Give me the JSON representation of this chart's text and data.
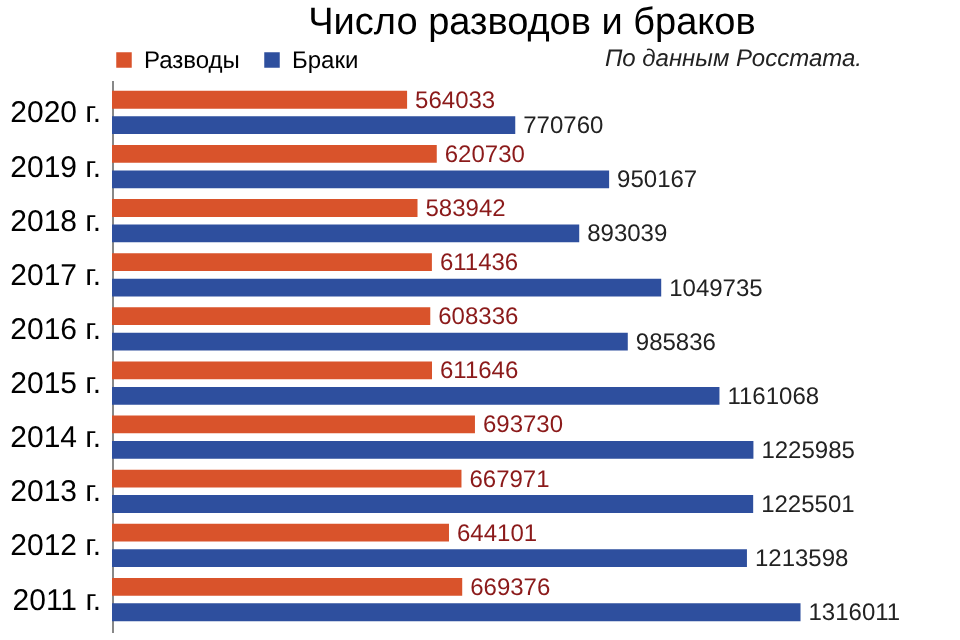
{
  "chart_data": {
    "type": "bar",
    "orientation": "horizontal",
    "title": "Число разводов и браков",
    "annotations": [
      "По данным Росстата."
    ],
    "categories": [
      "2020 г.",
      "2019 г.",
      "2018 г.",
      "2017 г.",
      "2016 г.",
      "2015 г.",
      "2014 г.",
      "2013 г.",
      "2012 г.",
      "2011 г."
    ],
    "series": [
      {
        "name": "Разводы",
        "color": "#d9532b",
        "values": [
          564033,
          620730,
          583942,
          611436,
          608336,
          611646,
          693730,
          667971,
          644101,
          669376
        ]
      },
      {
        "name": "Браки",
        "color": "#2e4f9e",
        "values": [
          770760,
          950167,
          893039,
          1049735,
          985836,
          1161068,
          1225985,
          1225501,
          1213598,
          1316011
        ]
      }
    ],
    "data_labels": true,
    "legend": "top left",
    "grid": false
  }
}
